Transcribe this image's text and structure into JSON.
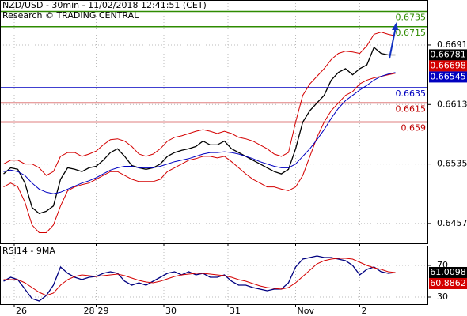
{
  "chart_data": [
    {
      "type": "line",
      "title": "NZD/USD - 30min - 11/02/2018 12:41:51 (CET)",
      "subtitle": "Research © TRADING CENTRAL",
      "xlim": [
        0,
        60
      ],
      "xticks": [
        {
          "value": 2,
          "label": "26"
        },
        {
          "value": 11.5,
          "label": "28"
        },
        {
          "value": 13.5,
          "label": "29"
        },
        {
          "value": 23,
          "label": "30"
        },
        {
          "value": 32,
          "label": "31"
        },
        {
          "value": 41.5,
          "label": "Nov"
        },
        {
          "value": 50.5,
          "label": "2"
        }
      ],
      "ylim": [
        0.6431,
        0.675
      ],
      "yticks": [
        0.6691,
        0.6613,
        0.6535,
        0.6457
      ],
      "grid": true,
      "series": [
        {
          "color": "#000000",
          "values": [
            0.6522,
            0.653,
            0.6528,
            0.651,
            0.6478,
            0.647,
            0.6473,
            0.648,
            0.6515,
            0.653,
            0.6528,
            0.6525,
            0.653,
            0.6532,
            0.654,
            0.655,
            0.6555,
            0.6545,
            0.6533,
            0.653,
            0.6528,
            0.653,
            0.6535,
            0.6545,
            0.655,
            0.6553,
            0.6555,
            0.6558,
            0.6565,
            0.656,
            0.656,
            0.6565,
            0.6555,
            0.655,
            0.6545,
            0.654,
            0.6535,
            0.653,
            0.6525,
            0.6522,
            0.6528,
            0.6555,
            0.659,
            0.6605,
            0.6615,
            0.6625,
            0.6645,
            0.6655,
            0.666,
            0.6652,
            0.666,
            0.6665,
            0.6688,
            0.668,
            0.6678,
            0.6678
          ]
        },
        {
          "color": "#d40000",
          "values": [
            0.6535,
            0.654,
            0.654,
            0.6535,
            0.6535,
            0.653,
            0.652,
            0.6525,
            0.6545,
            0.655,
            0.655,
            0.6545,
            0.6548,
            0.6552,
            0.656,
            0.6567,
            0.6568,
            0.6565,
            0.6558,
            0.6548,
            0.6545,
            0.6548,
            0.6555,
            0.6565,
            0.657,
            0.6572,
            0.6575,
            0.6578,
            0.658,
            0.6578,
            0.6575,
            0.6578,
            0.6575,
            0.657,
            0.6568,
            0.6565,
            0.656,
            0.6555,
            0.6548,
            0.6545,
            0.655,
            0.659,
            0.6625,
            0.664,
            0.665,
            0.666,
            0.6672,
            0.668,
            0.6683,
            0.6682,
            0.668,
            0.669,
            0.6705,
            0.6708,
            0.6705,
            0.6703
          ]
        },
        {
          "color": "#d40000",
          "values": [
            0.6505,
            0.651,
            0.6505,
            0.6485,
            0.6455,
            0.6445,
            0.6445,
            0.6455,
            0.648,
            0.65,
            0.6505,
            0.6508,
            0.651,
            0.6515,
            0.652,
            0.6525,
            0.6525,
            0.652,
            0.6515,
            0.6512,
            0.6512,
            0.6512,
            0.6515,
            0.6525,
            0.653,
            0.6535,
            0.654,
            0.6542,
            0.6545,
            0.6545,
            0.6543,
            0.6545,
            0.6538,
            0.653,
            0.6522,
            0.6515,
            0.651,
            0.6505,
            0.6505,
            0.6502,
            0.65,
            0.6505,
            0.652,
            0.6545,
            0.657,
            0.659,
            0.6605,
            0.6615,
            0.6625,
            0.663,
            0.664,
            0.6645,
            0.6648,
            0.665,
            0.6652,
            0.6654
          ]
        },
        {
          "color": "#0000c0",
          "values": [
            0.6525,
            0.6527,
            0.6525,
            0.652,
            0.651,
            0.6502,
            0.6498,
            0.6496,
            0.6498,
            0.6502,
            0.6506,
            0.651,
            0.6513,
            0.6517,
            0.6522,
            0.6527,
            0.653,
            0.6532,
            0.6532,
            0.653,
            0.653,
            0.653,
            0.6532,
            0.6535,
            0.6538,
            0.654,
            0.6542,
            0.6545,
            0.6548,
            0.655,
            0.655,
            0.6551,
            0.655,
            0.6548,
            0.6545,
            0.6542,
            0.6538,
            0.6535,
            0.6532,
            0.653,
            0.653,
            0.6535,
            0.6545,
            0.6555,
            0.6567,
            0.658,
            0.6595,
            0.6608,
            0.6618,
            0.6625,
            0.6632,
            0.6638,
            0.6645,
            0.665,
            0.6653,
            0.6655
          ]
        }
      ],
      "levels": [
        {
          "value": 0.6735,
          "color": "#2e8b00"
        },
        {
          "value": 0.6715,
          "color": "#2e8b00"
        },
        {
          "value": 0.6635,
          "color": "#0000c0"
        },
        {
          "value": 0.6615,
          "color": "#c00000"
        },
        {
          "value": 0.659,
          "color": "#c00000"
        }
      ],
      "last_values": [
        {
          "value": 0.66781,
          "color": "#000000"
        },
        {
          "value": 0.66698,
          "color": "#d40000"
        },
        {
          "value": 0.66545,
          "color": "#0000c0"
        }
      ]
    },
    {
      "type": "line",
      "title": "RSI14 - 9MA",
      "xlim": [
        0,
        60
      ],
      "ylim": [
        21,
        95
      ],
      "yticks": [
        70,
        30
      ],
      "series": [
        {
          "color": "#000080",
          "values": [
            50,
            55,
            52,
            40,
            28,
            25,
            32,
            45,
            68,
            60,
            55,
            52,
            55,
            56,
            60,
            62,
            60,
            50,
            45,
            48,
            45,
            50,
            55,
            60,
            62,
            58,
            62,
            58,
            60,
            55,
            55,
            58,
            50,
            45,
            45,
            42,
            40,
            38,
            40,
            40,
            48,
            68,
            78,
            80,
            82,
            80,
            80,
            78,
            76,
            70,
            58,
            65,
            68,
            62,
            60,
            61
          ]
        },
        {
          "color": "#d40000",
          "values": [
            52,
            52,
            52,
            48,
            42,
            36,
            32,
            35,
            45,
            52,
            56,
            58,
            57,
            56,
            57,
            58,
            59,
            57,
            54,
            51,
            49,
            48,
            50,
            53,
            56,
            58,
            59,
            60,
            60,
            59,
            58,
            57,
            55,
            52,
            50,
            47,
            44,
            42,
            41,
            40,
            42,
            48,
            56,
            64,
            72,
            76,
            78,
            79,
            79,
            78,
            74,
            70,
            67,
            65,
            62,
            61
          ]
        }
      ],
      "last_values": [
        {
          "value": 61.0098,
          "color": "#000000"
        },
        {
          "value": 60.8862,
          "color": "#d40000"
        }
      ]
    }
  ]
}
